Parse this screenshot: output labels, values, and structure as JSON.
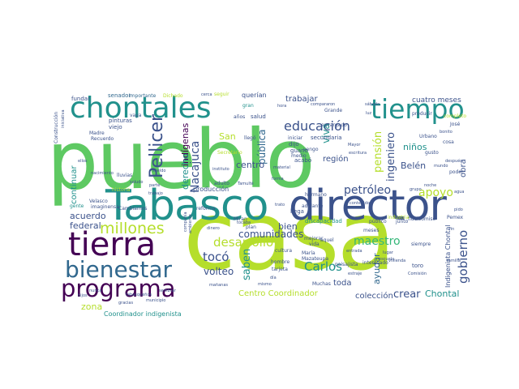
{
  "palette": {
    "lime": "#b5de2b",
    "green": "#5ec962",
    "teal": "#21918c",
    "blue": "#3b528b",
    "indigo": "#31688e",
    "purple": "#440154",
    "sea": "#35b779"
  },
  "words": {
    "pueblo": "pueblo",
    "casa": "casa",
    "tabasco": "Tabasco",
    "director": "director",
    "chontales": "chontales",
    "tiempo": "tiempo",
    "tierra": "tierra",
    "bienestar": "bienestar",
    "programa": "programa",
    "millones": "millones",
    "desarrollo": "desarrollo",
    "carlos": "Carlos",
    "educacion": "educación",
    "petroleo": "petróleo",
    "pellicer": "Pellicer",
    "comunidades": "comunidades",
    "maestro": "maestro",
    "toco": "tocó",
    "saben": "saben",
    "volteo": "volteo",
    "apoyo": "apoyo",
    "gobierno": "gobierno",
    "crear": "crear",
    "coleccion": "colección",
    "chontal": "Chontal",
    "centro_coordinador": "Centro Coordinador",
    "zona": "zona",
    "coordinador_indigenista": "Coordinador indigenista",
    "ayudar": "ayudar",
    "nacajuca": "Nacajuca",
    "region": "región",
    "ingeniero": "ingeniero",
    "pension": "pensión",
    "belen": "Belén",
    "ninos": "niños",
    "obra": "obra",
    "indigenas": "indígenas",
    "derecho": "derecho",
    "publica": "pública",
    "centro": "centro",
    "san": "San",
    "viva": "viva",
    "acuerdo": "acuerdo",
    "federal": "federal",
    "continuar": "continuar",
    "trabajar": "trabajar",
    "querian": "querían",
    "bien": "bien",
    "toda": "toda",
    "produccion": "producción",
    "cuatro_meses": "cuatro meses",
    "indigenista_chontal": "Indigenista Chontal",
    "fundar": "fundar",
    "senador": "senador",
    "importante": "importante",
    "secundaria": "secundaria",
    "dijo": "dijo",
    "guano": "guano",
    "vengo": "vengo",
    "viejo": "viejo",
    "pinturas": "pinturas",
    "salud": "salud",
    "iniciar": "iniciar",
    "llega": "llega",
    "adelante": "adelante",
    "historia": "historia",
    "siempre": "siempre",
    "industria": "industria",
    "pemex": "Pemex",
    "toro": "toro",
    "publico": "público",
    "junto": "junto",
    "reforma": "reforma",
    "gente": "gente",
    "velasco": "Velasco",
    "madre": "Madre",
    "recuerdo": "Recuerdo",
    "nacimiento": "nacimiento",
    "completo": "completo",
    "producir": "producir",
    "urbano": "Urbano",
    "grande": "Grande",
    "cultura": "cultura",
    "hombre": "hombre",
    "maria": "María",
    "mazateupa": "Mazateupa",
    "muchas": "Muchas",
    "meses": "meses",
    "seguir": "seguir",
    "dichado": "Dichado",
    "gran": "gran",
    "anos": "años",
    "llego": "llegó",
    "acabo": "acabó",
    "medio": "medio",
    "material": "material",
    "adulto": "adulto",
    "mayor": "Mayor",
    "cosa": "cosa",
    "jose": "José",
    "pido": "pido",
    "tarjeta": "tarjeta",
    "mejorar": "mejorar",
    "vida": "vida",
    "aquel": "aquel",
    "discapacidad": "discapacidad",
    "fideicomiso": "fideicomiso",
    "plan": "plan",
    "miran": "Miran",
    "tocaba": "tocaba",
    "estudiar": "estudiar",
    "imaginensa": "imaginensa",
    "lluvias": "lluvias",
    "comision": "Comisión",
    "encargado": "encargado",
    "escuela": "escuela",
    "hermano": "hermano",
    "poder": "poder",
    "gusto": "gusto",
    "estraje": "estraje",
    "tamulte": "Tamulté",
    "construccion": "Construcción",
    "iniciativa": "iniciativa",
    "tabasquenos": "tabasqueños",
    "municipio": "municipio",
    "cambiamos": "Cambiamos",
    "compania": "compañía",
    "secretario": "Secretario",
    "dinero": "dinero",
    "paisajista": "paisajista",
    "interesado": "interesado",
    "mismo": "mismo",
    "mananas": "mañanas",
    "ambiente": "ambiente",
    "compararon": "compararon",
    "escritura": "escritura",
    "contenido": "contenido",
    "vaya": "vaya",
    "noche": "noche",
    "despues": "después",
    "sabado": "sábado",
    "instituto": "instituto",
    "sueldo": "sueldo",
    "saludo": "saludo",
    "gracias": "gracias",
    "trabajo": "trabajo",
    "cerca": "cerca",
    "hora": "hora",
    "bonito": "bonito",
    "mundo": "mundo",
    "hijos": "hijos",
    "vivienda": "vivienda",
    "dia": "día",
    "sembrar": "sembrar",
    "entrada": "entrada",
    "lugar": "lugar",
    "familia": "familia",
    "grupo": "grupo",
    "trato": "trato",
    "forma": "forma",
    "parte": "parte",
    "luz": "luz",
    "agua": "agua",
    "ellos": "ellos",
    "nunca": "nunca",
    "fin": "fin"
  }
}
